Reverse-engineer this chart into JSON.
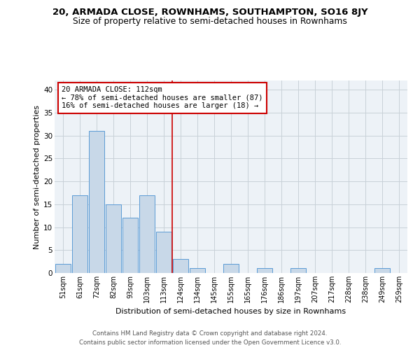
{
  "title_line1": "20, ARMADA CLOSE, ROWNHAMS, SOUTHAMPTON, SO16 8JY",
  "title_line2": "Size of property relative to semi-detached houses in Rownhams",
  "xlabel": "Distribution of semi-detached houses by size in Rownhams",
  "ylabel": "Number of semi-detached properties",
  "categories": [
    "51sqm",
    "61sqm",
    "72sqm",
    "82sqm",
    "93sqm",
    "103sqm",
    "113sqm",
    "124sqm",
    "134sqm",
    "145sqm",
    "155sqm",
    "165sqm",
    "176sqm",
    "186sqm",
    "197sqm",
    "207sqm",
    "217sqm",
    "228sqm",
    "238sqm",
    "249sqm",
    "259sqm"
  ],
  "values": [
    2,
    17,
    31,
    15,
    12,
    17,
    9,
    3,
    1,
    0,
    2,
    0,
    1,
    0,
    1,
    0,
    0,
    0,
    0,
    1,
    0
  ],
  "bar_color": "#c8d8e8",
  "bar_edge_color": "#5b9bd5",
  "vline_index": 6,
  "vline_color": "#cc0000",
  "annotation_line1": "20 ARMADA CLOSE: 112sqm",
  "annotation_line2": "← 78% of semi-detached houses are smaller (87)",
  "annotation_line3": "16% of semi-detached houses are larger (18) →",
  "ylim_max": 42,
  "yticks": [
    0,
    5,
    10,
    15,
    20,
    25,
    30,
    35,
    40
  ],
  "grid_color": "#c8d0d8",
  "bg_color": "#edf2f7",
  "footer_line1": "Contains HM Land Registry data © Crown copyright and database right 2024.",
  "footer_line2": "Contains public sector information licensed under the Open Government Licence v3.0."
}
